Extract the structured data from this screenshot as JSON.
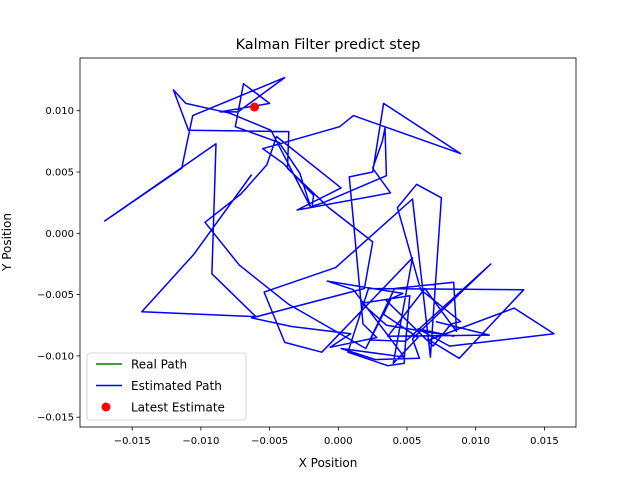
{
  "chart_data": {
    "type": "line",
    "title": "Kalman Filter predict step",
    "xlabel": "X Position",
    "ylabel": "Y Position",
    "xlim": [
      -0.0188,
      0.0173
    ],
    "ylim": [
      -0.0158,
      0.0143
    ],
    "xticks": [
      -0.015,
      -0.01,
      -0.005,
      0.0,
      0.005,
      0.01,
      0.015
    ],
    "xtick_labels": [
      "−0.015",
      "−0.010",
      "−0.005",
      "0.000",
      "0.005",
      "0.010",
      "0.015"
    ],
    "yticks": [
      -0.015,
      -0.01,
      -0.005,
      0.0,
      0.005,
      0.01
    ],
    "ytick_labels": [
      "−0.015",
      "−0.010",
      "−0.005",
      "0.000",
      "0.005",
      "0.010"
    ],
    "grid": false,
    "legend": "lower-left",
    "series": [
      {
        "name": "Real Path",
        "color": "#008000",
        "x": [],
        "y": []
      },
      {
        "name": "Estimated Path",
        "color": "#0000ff",
        "x": [
          0.0071,
          0.011,
          0.0036,
          0.0063,
          0.0086,
          0.0084,
          0.0041,
          0.0023,
          0.0049,
          0.0111,
          0.0054,
          0.0059,
          0.0027,
          0.0002,
          0.0048,
          0.0048,
          0.0036,
          0.0007,
          0.0022,
          0.0135,
          0.0088,
          0.0066,
          0.0128,
          0.0157,
          0.0081,
          0.0058,
          0.0084,
          0.0035,
          0.0017,
          0.0052,
          0.0048,
          0.0011,
          -0.0008,
          0.0047,
          0.0035,
          0.0069,
          0.0082,
          0.0089,
          0.006,
          0.0043,
          0.0057,
          0.0075,
          0.0067,
          0.0054,
          -0.0002,
          -0.0054,
          -0.0039,
          -0.0012,
          0.0054,
          0.004,
          0.0058,
          0.0033,
          0.0038,
          0.002,
          -0.0036,
          -0.0072,
          -0.0097,
          -0.0071,
          -0.0052,
          -0.0045,
          0.0002,
          -0.003,
          0.0038,
          0.0025,
          0.0032,
          0.0034,
          0.0035,
          -0.0011,
          -0.0019,
          -0.0018,
          -0.004,
          -0.0055,
          0.0001,
          0.0011,
          0.0089,
          0.0033,
          0.0025,
          0.0008,
          0.0018,
          0.0028,
          -0.0006,
          0.0009,
          -0.0034,
          -0.0063,
          0.0019,
          0.0025,
          -0.0007,
          -0.0037,
          -0.0036,
          -0.0109,
          -0.012,
          -0.0111,
          -0.0079,
          -0.0049,
          -0.002,
          -0.0028,
          -0.0043,
          -0.0075,
          -0.0069,
          -0.005,
          -0.0086,
          -0.0073,
          -0.0039,
          -0.0106,
          -0.0114,
          -0.017,
          -0.0089,
          -0.0092,
          -0.006,
          -0.0143,
          -0.0105,
          -0.0063
        ],
        "y": [
          -0.0072,
          -0.0083,
          -0.0084,
          -0.0045,
          -0.008,
          -0.004,
          -0.0045,
          -0.0087,
          -0.0088,
          -0.0025,
          -0.0086,
          -0.0102,
          -0.0103,
          -0.0094,
          -0.0101,
          -0.0106,
          -0.0108,
          -0.0097,
          -0.0045,
          -0.0046,
          -0.0102,
          -0.0087,
          -0.0061,
          -0.0082,
          -0.0092,
          -0.0078,
          -0.0084,
          -0.0075,
          -0.0057,
          -0.0051,
          -0.0101,
          -0.0046,
          -0.0039,
          -0.0049,
          -0.0055,
          -0.0092,
          -0.0074,
          -0.0072,
          -0.0046,
          0.0021,
          0.004,
          0.0029,
          -0.0101,
          0.0028,
          -0.0028,
          -0.0048,
          -0.0089,
          -0.0097,
          -0.002,
          -0.0106,
          -0.0085,
          -0.0066,
          -0.0054,
          -0.0094,
          -0.0058,
          -0.0026,
          0.0009,
          0.0032,
          0.0056,
          0.0079,
          0.0037,
          0.0019,
          0.0033,
          0.0053,
          0.0075,
          0.0086,
          0.0047,
          0.0025,
          0.0022,
          0.0031,
          0.0057,
          0.0069,
          0.0087,
          0.0096,
          0.0065,
          0.0106,
          0.005,
          0.0046,
          -0.0074,
          -0.0085,
          -0.0093,
          -0.0082,
          -0.0076,
          -0.0069,
          -0.0045,
          -0.0007,
          0.0021,
          0.0053,
          0.0083,
          0.0084,
          0.0117,
          0.0106,
          0.0098,
          0.0084,
          0.0021,
          0.0049,
          0.0074,
          0.0087,
          0.0122,
          0.0106,
          0.0099,
          0.0099,
          0.0127,
          0.0096,
          0.0053,
          0.001,
          0.0073,
          -0.0033,
          -0.0068,
          -0.0064,
          -0.0017,
          0.0048
        ]
      }
    ],
    "markers": [
      {
        "name": "Latest Estimate",
        "color": "#ff0000",
        "x": [
          -0.0061
        ],
        "y": [
          0.0103
        ]
      }
    ]
  }
}
